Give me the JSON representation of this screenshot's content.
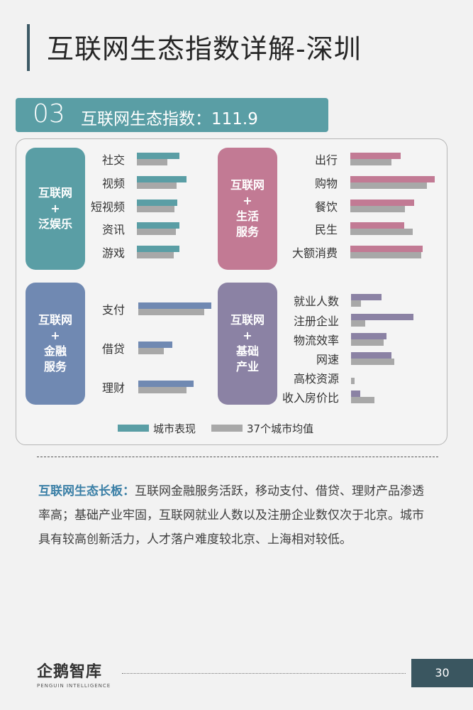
{
  "page": {
    "title": "互联网生态指数详解-深圳",
    "section_number": "03",
    "section_label": "互联网生态指数：111.9"
  },
  "colors": {
    "city_default": "#5a9ea5",
    "avg": "#a8a8a8",
    "entertainment": "#5a9ea5",
    "life": "#c27a94",
    "finance": "#7089b2",
    "industry": "#8b82a4"
  },
  "chart_data": [
    {
      "type": "bar",
      "group": "互联网\n+\n泛娱乐",
      "color": "#5a9ea5",
      "categories": [
        "社交",
        "视频",
        "短视频",
        "资讯",
        "游戏"
      ],
      "series": [
        {
          "name": "城市表现",
          "values": [
            60,
            70,
            57,
            60,
            60
          ]
        },
        {
          "name": "37个城市均值",
          "values": [
            43,
            56,
            53,
            55,
            52
          ]
        }
      ]
    },
    {
      "type": "bar",
      "group": "互联网\n+\n生活\n服务",
      "color": "#c27a94",
      "categories": [
        "出行",
        "购物",
        "餐饮",
        "民生",
        "大额消费"
      ],
      "series": [
        {
          "name": "城市表现",
          "values": [
            71,
            119,
            90,
            76,
            102
          ]
        },
        {
          "name": "37个城市均值",
          "values": [
            58,
            108,
            77,
            88,
            100
          ]
        }
      ]
    },
    {
      "type": "bar",
      "group": "互联网\n+\n金融\n服务",
      "color": "#7089b2",
      "categories": [
        "支付",
        "借贷",
        "理财"
      ],
      "series": [
        {
          "name": "城市表现",
          "values": [
            103,
            48,
            78
          ]
        },
        {
          "name": "37个城市均值",
          "values": [
            93,
            36,
            68
          ]
        }
      ]
    },
    {
      "type": "bar",
      "group": "互联网\n+\n基础\n产业",
      "color": "#8b82a4",
      "categories": [
        "就业人数",
        "注册企业",
        "物流效率",
        "网速",
        "高校资源",
        "收入房价比"
      ],
      "series": [
        {
          "name": "城市表现",
          "values": [
            43,
            88,
            50,
            57,
            0,
            13
          ]
        },
        {
          "name": "37个城市均值",
          "values": [
            14,
            20,
            46,
            61,
            5,
            33
          ]
        }
      ]
    }
  ],
  "legend": {
    "city": "城市表现",
    "avg": "37个城市均值"
  },
  "summary": {
    "key": "互联网生态长板：",
    "text": "互联网金融服务活跃，移动支付、借贷、理财产品渗透率高；基础产业牢固，互联网就业人数以及注册企业数仅次于北京。城市具有较高创新活力，人才落户难度较北京、上海相对较低。"
  },
  "footer": {
    "logo_main": "企鹅智库",
    "logo_sub": "PENGUIN INTELLIGENCE",
    "page_number": "30"
  }
}
